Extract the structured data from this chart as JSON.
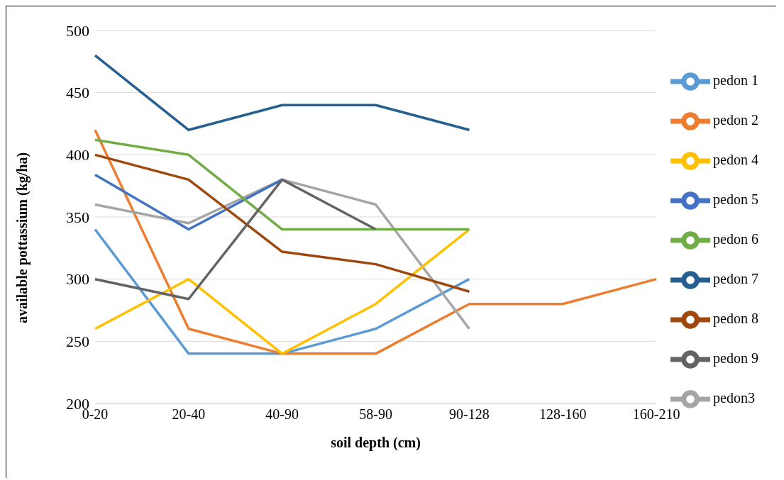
{
  "chart_data": {
    "type": "line",
    "xlabel": "soil depth (cm)",
    "ylabel": "available pottassium (kg/ha)",
    "categories": [
      "0-20",
      "20-40",
      "40-90",
      "58-90",
      "90-128",
      "128-160",
      "160-210"
    ],
    "ylim": [
      200,
      500
    ],
    "yticks": [
      200,
      250,
      300,
      350,
      400,
      450,
      500
    ],
    "grid": "y",
    "legend": "right",
    "marker": "none",
    "line_style": "solid",
    "series": [
      {
        "name": "pedon 1",
        "color": "#5b9bd5",
        "values": [
          340,
          240,
          240,
          260,
          300,
          null,
          null
        ]
      },
      {
        "name": "pedon 2",
        "color": "#ed7d31",
        "values": [
          420,
          260,
          240,
          240,
          280,
          280,
          300
        ]
      },
      {
        "name": "pedon3",
        "color": "#a5a5a5",
        "values": [
          360,
          345,
          380,
          360,
          260,
          null,
          null
        ]
      },
      {
        "name": "pedon 4",
        "color": "#ffc000",
        "values": [
          260,
          300,
          240,
          280,
          340,
          null,
          null
        ]
      },
      {
        "name": "pedon 5",
        "color": "#4472c4",
        "values": [
          384,
          340,
          380,
          null,
          null,
          null,
          null
        ]
      },
      {
        "name": "pedon 6",
        "color": "#70ad47",
        "values": [
          412,
          400,
          340,
          340,
          340,
          null,
          null
        ]
      },
      {
        "name": "pedon 7",
        "color": "#255e91",
        "values": [
          480,
          420,
          440,
          440,
          420,
          null,
          null
        ]
      },
      {
        "name": "pedon 8",
        "color": "#9e480e",
        "values": [
          400,
          380,
          322,
          312,
          290,
          null,
          null
        ]
      },
      {
        "name": "pedon 9",
        "color": "#636363",
        "values": [
          300,
          284,
          380,
          340,
          null,
          null,
          null
        ]
      }
    ]
  }
}
